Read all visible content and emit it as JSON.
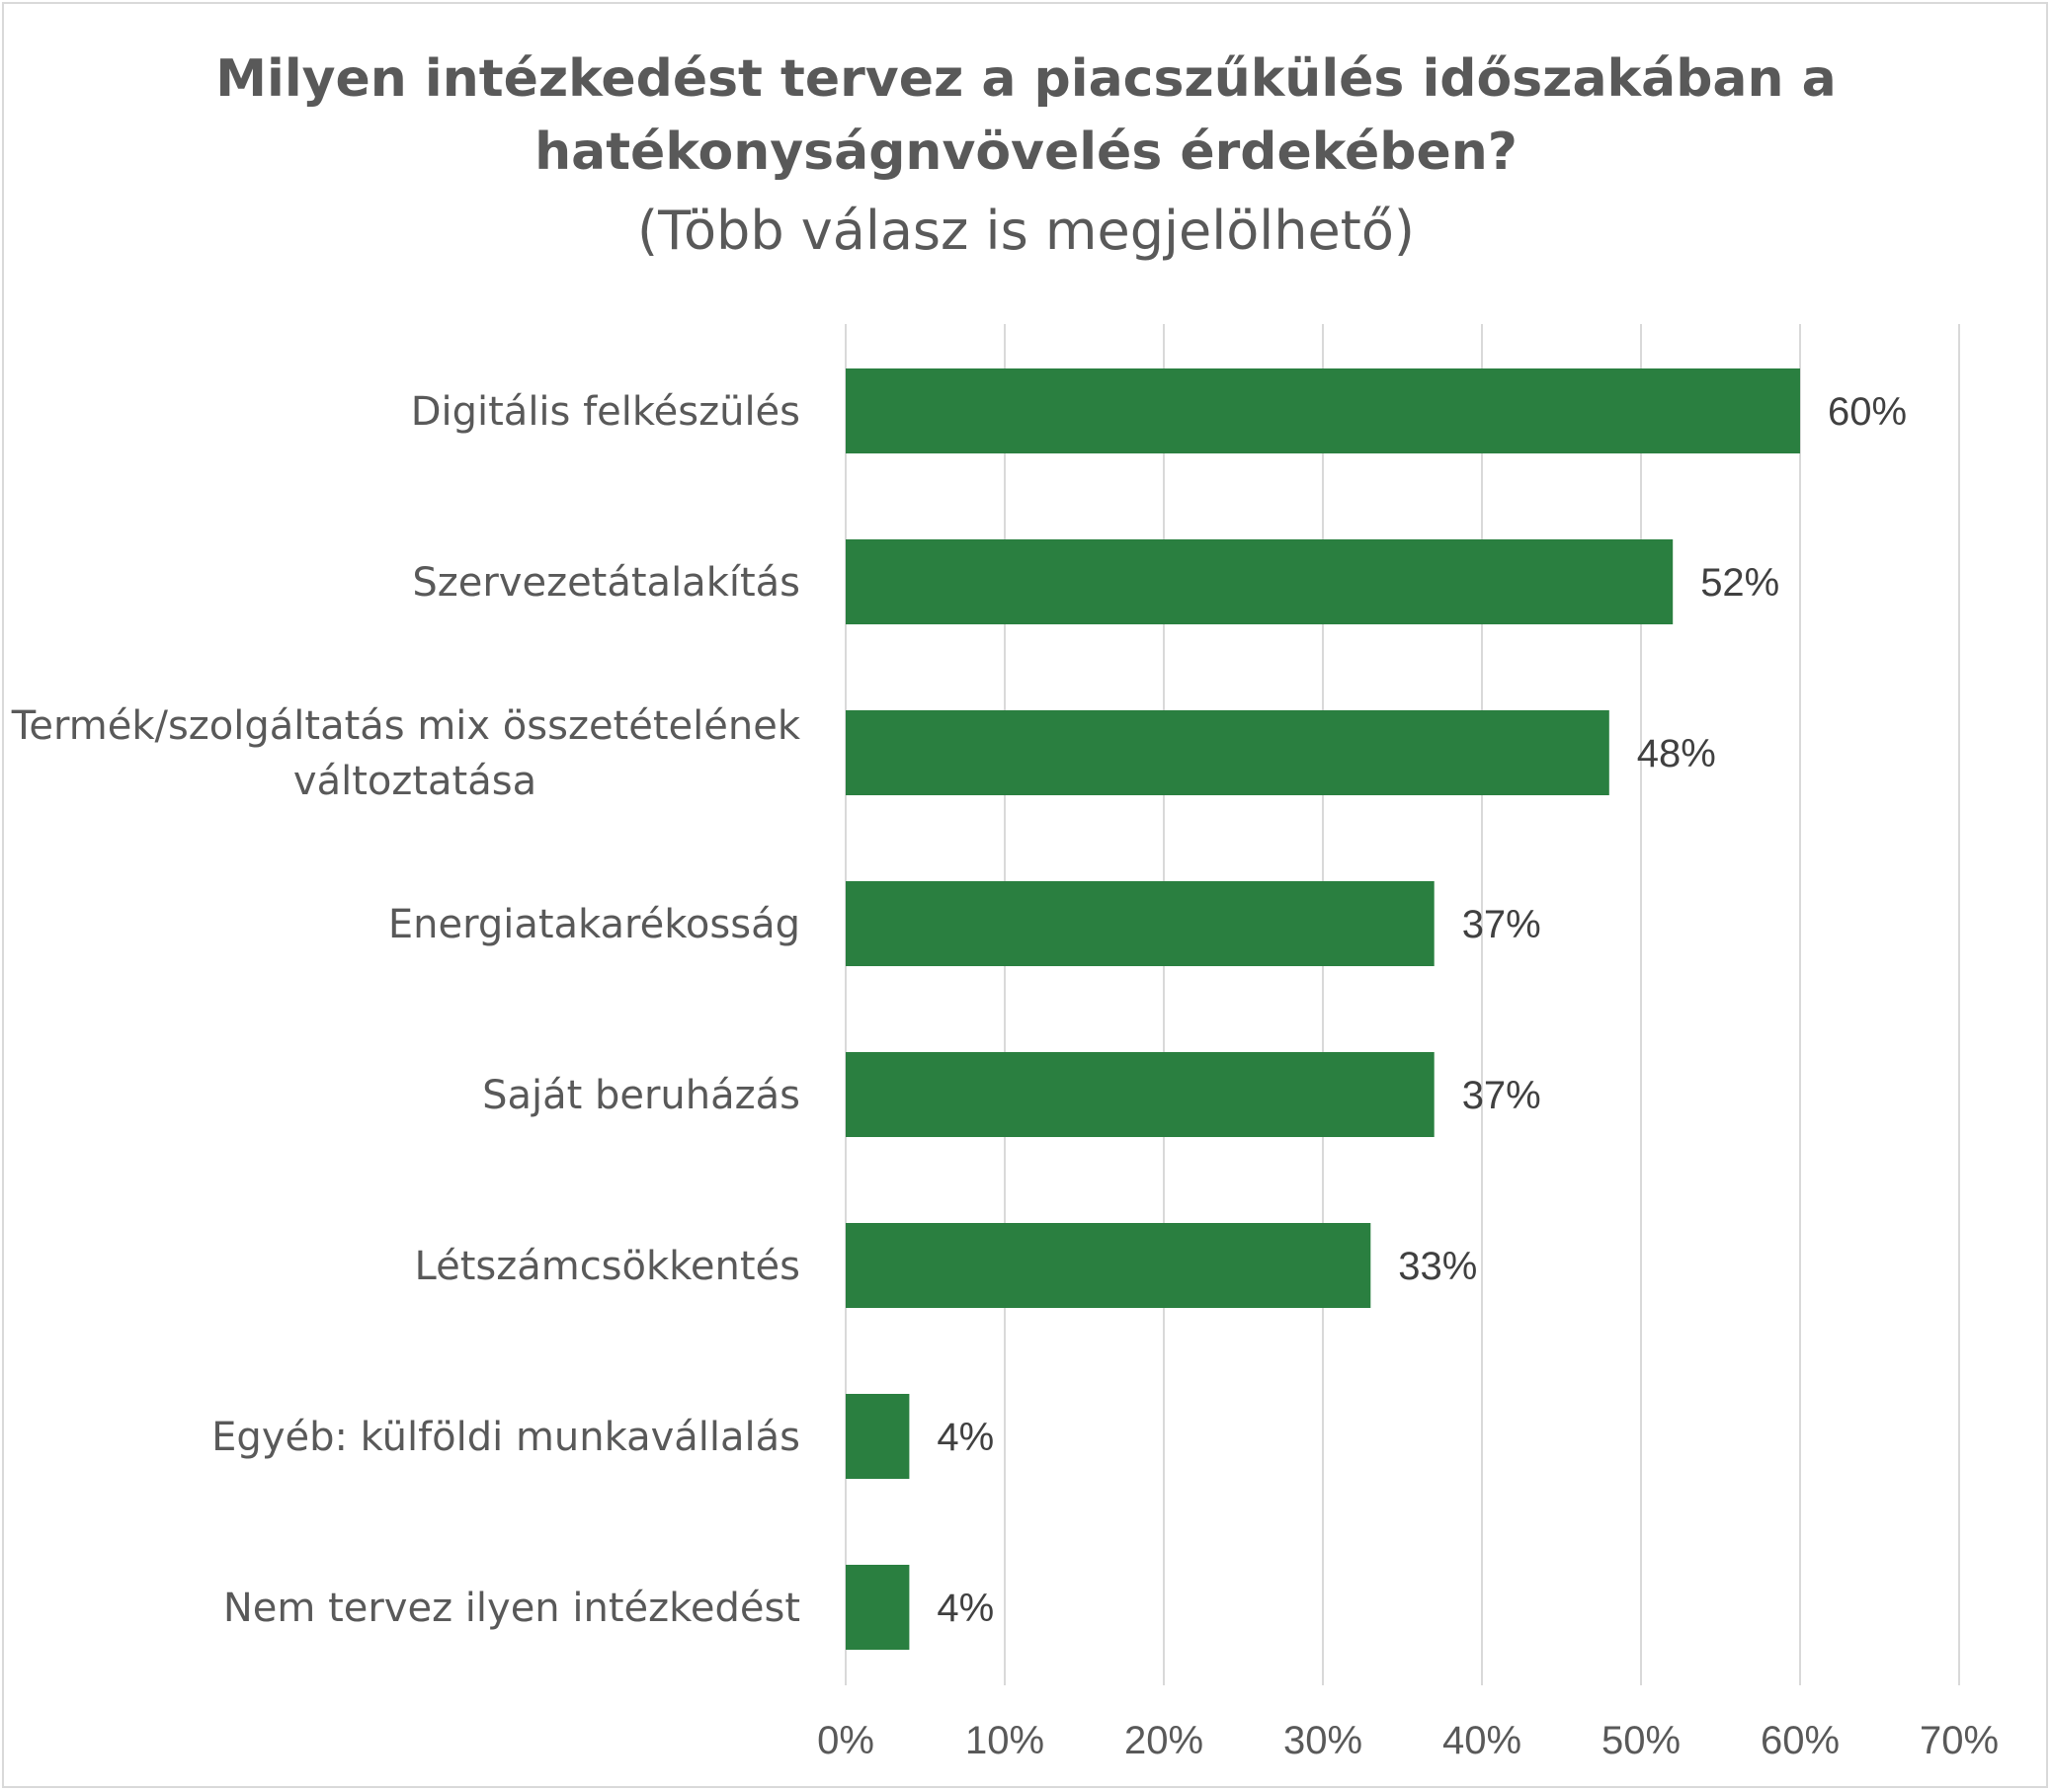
{
  "chart_data": {
    "type": "bar",
    "orientation": "horizontal",
    "title": "Milyen intézkedést tervez a piacszűkülés időszakában a",
    "title_line2": "hatékonyságnvövelés érdekében?",
    "subtitle": "(Több válasz is megjelölhető)",
    "categories": [
      [
        "Digitális felkészülés"
      ],
      [
        "Szervezetátalakítás"
      ],
      [
        "Termék/szolgáltatás mix összetételének",
        "változtatása"
      ],
      [
        "Energiatakarékosság"
      ],
      [
        "Saját beruházás"
      ],
      [
        "Létszámcsökkentés"
      ],
      [
        "Egyéb: külföldi munkavállalás"
      ],
      [
        "Nem tervez ilyen intézkedést"
      ]
    ],
    "values": [
      60,
      52,
      48,
      37,
      37,
      33,
      4,
      4
    ],
    "data_labels": [
      "60%",
      "52%",
      "48%",
      "37%",
      "37%",
      "33%",
      "4%",
      "4%"
    ],
    "x_ticks": [
      "0%",
      "10%",
      "20%",
      "30%",
      "40%",
      "50%",
      "60%",
      "70%"
    ],
    "xlim": [
      0,
      70
    ],
    "xlabel": "",
    "ylabel": "",
    "bar_color": "#2a7f40",
    "grid_color": "#d9d9d9",
    "gridlines": "vertical",
    "legend": "none"
  }
}
